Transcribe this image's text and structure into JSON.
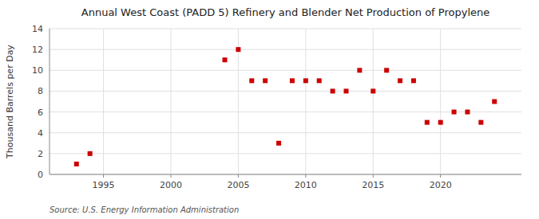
{
  "chart_data": {
    "type": "scatter",
    "title": "Annual West Coast (PADD 5) Refinery and Blender Net Production of Propylene",
    "ylabel": "Thousand Barrels per Day",
    "source": "Source: U.S. Energy Information Administration",
    "x": [
      1993,
      1994,
      2004,
      2005,
      2006,
      2007,
      2008,
      2009,
      2010,
      2011,
      2012,
      2013,
      2014,
      2015,
      2016,
      2017,
      2018,
      2019,
      2020,
      2021,
      2022,
      2023,
      2024
    ],
    "values": [
      1,
      2,
      11,
      12,
      9,
      9,
      3,
      9,
      9,
      9,
      8,
      8,
      10,
      8,
      10,
      9,
      9,
      5,
      5,
      6,
      6,
      5,
      7
    ],
    "color": "#CC0000",
    "marker": "square",
    "xlim": [
      1991,
      2026
    ],
    "ylim": [
      0,
      14
    ],
    "xticks": [
      1995,
      2000,
      2005,
      2010,
      2015,
      2020
    ],
    "yticks": [
      0,
      2,
      4,
      6,
      8,
      10,
      12,
      14
    ],
    "grid": true
  }
}
